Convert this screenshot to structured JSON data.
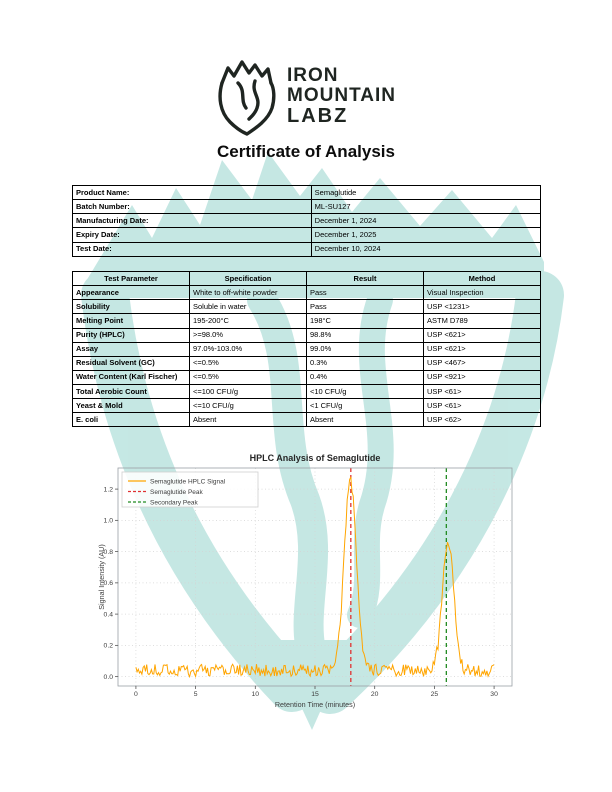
{
  "logo": {
    "line1": "IRON",
    "line2": "MOUNTAIN",
    "line3": "LABZ"
  },
  "title": "Certificate of Analysis",
  "info_table": {
    "rows": [
      {
        "label": "Product Name:",
        "value": "Semaglutide"
      },
      {
        "label": "Batch Number:",
        "value": "ML-SU127"
      },
      {
        "label": "Manufacturing Date:",
        "value": "December 1, 2024"
      },
      {
        "label": "Expiry Date:",
        "value": "December 1, 2025"
      },
      {
        "label": "Test Date:",
        "value": "December 10, 2024"
      }
    ]
  },
  "results_table": {
    "headers": [
      "Test Parameter",
      "Specification",
      "Result",
      "Method"
    ],
    "rows": [
      [
        "Appearance",
        "White to off-white powder",
        "Pass",
        "Visual Inspection"
      ],
      [
        "Solubility",
        "Soluble in water",
        "Pass",
        "USP <1231>"
      ],
      [
        "Melting Point",
        "195-200°C",
        "198°C",
        "ASTM D789"
      ],
      [
        "Purity (HPLC)",
        ">=98.0%",
        "98.8%",
        "USP <621>"
      ],
      [
        "Assay",
        "97.0%-103.0%",
        "99.0%",
        "USP <621>"
      ],
      [
        "Residual Solvent (GC)",
        "<=0.5%",
        "0.3%",
        "USP <467>"
      ],
      [
        "Water Content (Karl Fischer)",
        "<=0.5%",
        "0.4%",
        "USP <921>"
      ],
      [
        "Total Aerobic Count",
        "<=100 CFU/g",
        "<10 CFU/g",
        "USP <61>"
      ],
      [
        "Yeast & Mold",
        "<=10 CFU/g",
        "<1 CFU/g",
        "USP <61>"
      ],
      [
        "E. coli",
        "Absent",
        "Absent",
        "USP <62>"
      ]
    ]
  },
  "chart_data": {
    "type": "line",
    "title": "HPLC Analysis of Semaglutide",
    "xlabel": "Retention Time (minutes)",
    "ylabel": "Signal Intensity (AU)",
    "xlim": [
      -1.5,
      31.5
    ],
    "ylim": [
      -0.06,
      1.335
    ],
    "xticks": [
      0,
      5,
      10,
      15,
      20,
      25,
      30
    ],
    "yticks": [
      0.0,
      0.2,
      0.4,
      0.6,
      0.8,
      1.0,
      1.2
    ],
    "grid": true,
    "legend_position": "upper left",
    "legend": [
      "Semaglutide HPLC Signal",
      "Semaglutide Peak",
      "Secondary Peak"
    ],
    "series": [
      {
        "name": "Semaglutide HPLC Signal",
        "color": "#ffa500",
        "style": "solid",
        "x_range": [
          0,
          30
        ],
        "x_step": 0.1,
        "baseline": 0.04,
        "noise_amplitude": 0.08,
        "peaks": [
          {
            "center": 17.95,
            "height": 1.23,
            "sigma": 0.5
          },
          {
            "center": 26.15,
            "height": 0.82,
            "sigma": 0.48
          }
        ]
      }
    ],
    "vlines": [
      {
        "name": "Semaglutide Peak",
        "x": 18,
        "color": "#e03131",
        "style": "dashed"
      },
      {
        "name": "Secondary Peak",
        "x": 26,
        "color": "#228b22",
        "style": "dashed"
      }
    ]
  },
  "colors": {
    "watermark": "#bfe5e1",
    "signal": "#ffa500",
    "semaglutide_peak_line": "#e03131",
    "secondary_peak_line": "#228b22",
    "logo_ink": "#1f2521",
    "chart_text": "#3d3d3d"
  }
}
